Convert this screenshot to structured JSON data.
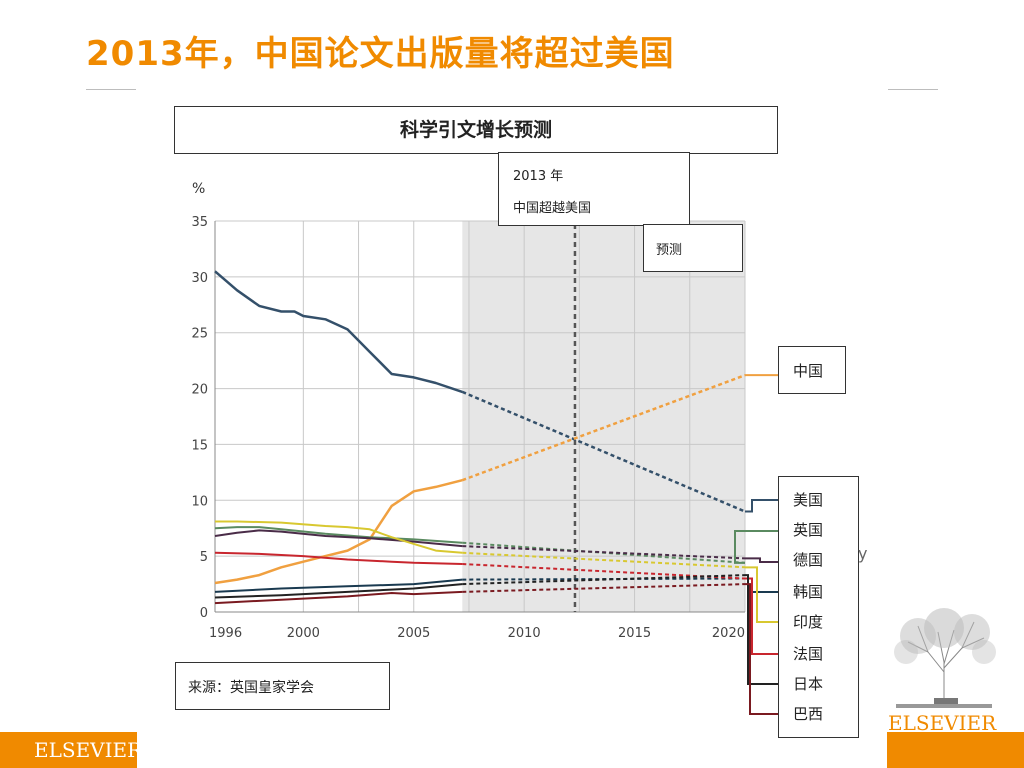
{
  "slide": {
    "title": "2013年，中国论文出版量将超过美国",
    "brand_left": "ELSEVIER",
    "brand_right": "ELSEVIER",
    "stray_glyph": "y"
  },
  "colors": {
    "accent": "#f08a00",
    "forecast_shade": "#e6e6e6"
  },
  "chart_data": {
    "type": "line",
    "title": "科学引文增长预测",
    "unit_label": "%",
    "annotation": {
      "line1": "2013 年",
      "line2": "中国超越美国",
      "x": 2012.3
    },
    "forecast_label": "预测",
    "forecast_start": 2007.2,
    "source": "来源：英国皇家学会",
    "xlim": [
      1996,
      2020
    ],
    "ylim": [
      0,
      35
    ],
    "x_ticks": [
      1996,
      2000,
      2005,
      2010,
      2015,
      2020
    ],
    "y_ticks": [
      0,
      5,
      10,
      15,
      20,
      25,
      30,
      35
    ],
    "series": [
      {
        "name": "美国",
        "color": "#34506a",
        "actual": [
          [
            1996,
            30.5
          ],
          [
            1997,
            28.8
          ],
          [
            1998,
            27.4
          ],
          [
            1999,
            26.9
          ],
          [
            1999.6,
            26.9
          ],
          [
            2000,
            26.5
          ],
          [
            2001,
            26.2
          ],
          [
            2002,
            25.3
          ],
          [
            2003,
            23.3
          ],
          [
            2004,
            21.3
          ],
          [
            2005,
            21
          ],
          [
            2006,
            20.5
          ],
          [
            2007.2,
            19.7
          ]
        ],
        "forecast": [
          [
            2007.2,
            19.7
          ],
          [
            2020,
            9
          ]
        ]
      },
      {
        "name": "中国",
        "color": "#f0a040",
        "actual": [
          [
            1996,
            2.6
          ],
          [
            1997,
            2.9
          ],
          [
            1998,
            3.3
          ],
          [
            1999,
            4
          ],
          [
            2000,
            4.5
          ],
          [
            2001,
            5
          ],
          [
            2002,
            5.5
          ],
          [
            2003,
            6.5
          ],
          [
            2004,
            9.5
          ],
          [
            2005,
            10.8
          ],
          [
            2006,
            11.2
          ],
          [
            2007.2,
            11.8
          ]
        ],
        "forecast": [
          [
            2007.2,
            11.8
          ],
          [
            2020,
            21.2
          ]
        ]
      },
      {
        "name": "英国",
        "color": "#5a8a60",
        "actual": [
          [
            1996,
            7.5
          ],
          [
            1997,
            7.6
          ],
          [
            1998,
            7.6
          ],
          [
            1999,
            7.4
          ],
          [
            2001,
            7
          ],
          [
            2003,
            6.7
          ],
          [
            2005,
            6.5
          ],
          [
            2007.2,
            6.2
          ]
        ],
        "forecast": [
          [
            2007.2,
            6.2
          ],
          [
            2020,
            4.4
          ]
        ]
      },
      {
        "name": "德国",
        "color": "#4a2c48",
        "actual": [
          [
            1996,
            6.8
          ],
          [
            1997,
            7.1
          ],
          [
            1998,
            7.3
          ],
          [
            1999,
            7.2
          ],
          [
            2001,
            6.8
          ],
          [
            2003,
            6.6
          ],
          [
            2005,
            6.3
          ],
          [
            2007.2,
            5.9
          ]
        ],
        "forecast": [
          [
            2007.2,
            5.9
          ],
          [
            2020,
            4.8
          ]
        ]
      },
      {
        "name": "韩国",
        "color": "#1a3a50",
        "actual": [
          [
            1996,
            1.8
          ],
          [
            1999,
            2.1
          ],
          [
            2002,
            2.3
          ],
          [
            2005,
            2.5
          ],
          [
            2007.2,
            2.9
          ]
        ],
        "forecast": [
          [
            2007.2,
            2.9
          ],
          [
            2020,
            3
          ]
        ]
      },
      {
        "name": "印度",
        "color": "#d8c830",
        "actual": [
          [
            1996,
            8.1
          ],
          [
            1997,
            8.1
          ],
          [
            1999,
            8
          ],
          [
            2001,
            7.7
          ],
          [
            2002,
            7.6
          ],
          [
            2003,
            7.4
          ],
          [
            2004,
            6.7
          ],
          [
            2005,
            6.1
          ],
          [
            2006,
            5.5
          ],
          [
            2007.2,
            5.3
          ]
        ],
        "forecast": [
          [
            2007.2,
            5.3
          ],
          [
            2020,
            4
          ]
        ]
      },
      {
        "name": "法国",
        "color": "#c8262e",
        "actual": [
          [
            1996,
            5.3
          ],
          [
            1998,
            5.2
          ],
          [
            2000,
            5
          ],
          [
            2002,
            4.7
          ],
          [
            2004,
            4.5
          ],
          [
            2005,
            4.4
          ],
          [
            2007.2,
            4.3
          ]
        ],
        "forecast": [
          [
            2007.2,
            4.3
          ],
          [
            2020,
            3
          ]
        ]
      },
      {
        "name": "日本",
        "color": "#222222",
        "actual": [
          [
            1996,
            1.3
          ],
          [
            1999,
            1.5
          ],
          [
            2002,
            1.8
          ],
          [
            2005,
            2.1
          ],
          [
            2007.2,
            2.5
          ]
        ],
        "forecast": [
          [
            2007.2,
            2.5
          ],
          [
            2020,
            3.3
          ]
        ]
      },
      {
        "name": "巴西",
        "color": "#7a1a20",
        "actual": [
          [
            1996,
            0.8
          ],
          [
            1999,
            1.1
          ],
          [
            2002,
            1.4
          ],
          [
            2004,
            1.7
          ],
          [
            2005,
            1.6
          ],
          [
            2007.2,
            1.8
          ]
        ],
        "forecast": [
          [
            2007.2,
            1.8
          ],
          [
            2020,
            2.5
          ]
        ]
      }
    ]
  }
}
